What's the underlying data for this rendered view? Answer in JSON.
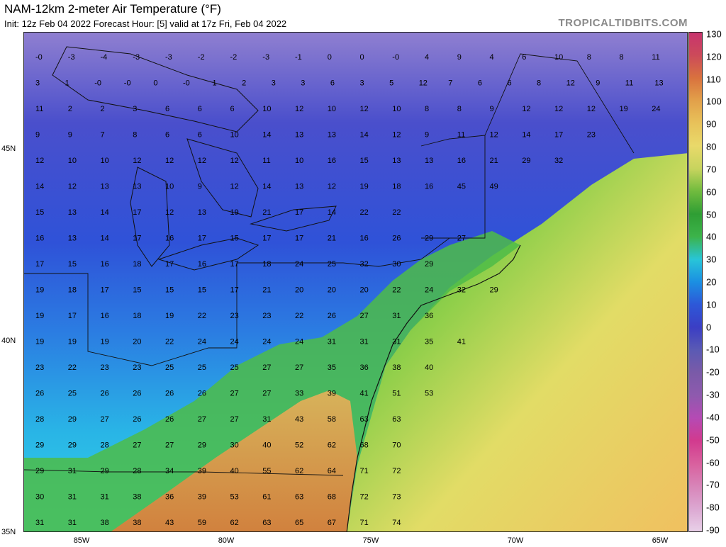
{
  "header": {
    "title": "NAM-12km 2-meter Air Temperature (°F)",
    "subtitle": "Init: 12z Feb 04 2022   Forecast Hour: [5]   valid at 17z Fri, Feb 04 2022",
    "brand": "TROPICALTIDBITS.COM"
  },
  "axes": {
    "x_labels": [
      "85W",
      "80W",
      "75W",
      "70W",
      "65W"
    ],
    "y_labels": [
      "45N",
      "40N",
      "35N"
    ]
  },
  "colorbar": {
    "labels": [
      "130",
      "120",
      "110",
      "100",
      "90",
      "80",
      "70",
      "60",
      "50",
      "40",
      "30",
      "20",
      "10",
      "0",
      "-10",
      "-20",
      "-30",
      "-40",
      "-50",
      "-60",
      "-70",
      "-80",
      "-90"
    ],
    "colors_top_to_bottom": [
      "#c8336e",
      "#cc4a5a",
      "#d9723e",
      "#e2a04a",
      "#e8c25a",
      "#e9d96a",
      "#c7d45e",
      "#70bb3e",
      "#2f9e34",
      "#3cb34a",
      "#28c5d8",
      "#1b8fe2",
      "#2d58d8",
      "#3b3ec4",
      "#5a5ab4",
      "#7a5aa8",
      "#8e5aae",
      "#b54ab4",
      "#d23a8e",
      "#d9609e",
      "#d884b8",
      "#dca8d2",
      "#e8d0e8"
    ]
  },
  "temperatures": [
    [
      "-0",
      "-3",
      "-4",
      "-3",
      "-3",
      "-2",
      "-2",
      "-3",
      "-1",
      "0",
      "0",
      "-0",
      "4",
      "9",
      "4",
      "6",
      "10",
      "8",
      "8",
      "11"
    ],
    [
      "3",
      "1",
      "-0",
      "-0",
      "0",
      "-0",
      "1",
      "2",
      "3",
      "3",
      "6",
      "3",
      "5",
      "12",
      "7",
      "6",
      "6",
      "8",
      "12",
      "9",
      "11",
      "13"
    ],
    [
      "11",
      "2",
      "2",
      "3",
      "6",
      "6",
      "6",
      "10",
      "12",
      "10",
      "12",
      "10",
      "8",
      "8",
      "9",
      "12",
      "12",
      "12",
      "19",
      "24"
    ],
    [
      "9",
      "9",
      "7",
      "8",
      "6",
      "6",
      "10",
      "14",
      "13",
      "13",
      "14",
      "12",
      "9",
      "11",
      "12",
      "14",
      "17",
      "23"
    ],
    [
      "12",
      "10",
      "10",
      "12",
      "12",
      "12",
      "12",
      "11",
      "10",
      "16",
      "15",
      "13",
      "13",
      "16",
      "21",
      "29",
      "32"
    ],
    [
      "14",
      "12",
      "13",
      "13",
      "10",
      "9",
      "12",
      "14",
      "13",
      "12",
      "19",
      "18",
      "16",
      "45",
      "49"
    ],
    [
      "15",
      "13",
      "14",
      "17",
      "12",
      "13",
      "19",
      "21",
      "17",
      "14",
      "22",
      "22"
    ],
    [
      "16",
      "13",
      "14",
      "17",
      "16",
      "17",
      "15",
      "17",
      "17",
      "21",
      "16",
      "26",
      "29",
      "27"
    ],
    [
      "17",
      "15",
      "16",
      "18",
      "17",
      "16",
      "17",
      "18",
      "24",
      "25",
      "32",
      "30",
      "29"
    ],
    [
      "19",
      "18",
      "17",
      "15",
      "15",
      "15",
      "17",
      "21",
      "20",
      "20",
      "20",
      "22",
      "24",
      "32",
      "29"
    ],
    [
      "19",
      "17",
      "16",
      "18",
      "19",
      "22",
      "23",
      "23",
      "22",
      "26",
      "27",
      "31",
      "36"
    ],
    [
      "19",
      "19",
      "19",
      "20",
      "22",
      "24",
      "24",
      "24",
      "24",
      "31",
      "31",
      "31",
      "35",
      "41"
    ],
    [
      "23",
      "22",
      "23",
      "23",
      "25",
      "25",
      "25",
      "27",
      "27",
      "35",
      "36",
      "38",
      "40"
    ],
    [
      "26",
      "25",
      "26",
      "26",
      "26",
      "26",
      "27",
      "27",
      "33",
      "39",
      "41",
      "51",
      "53"
    ],
    [
      "28",
      "29",
      "27",
      "26",
      "26",
      "27",
      "27",
      "31",
      "43",
      "58",
      "63",
      "63"
    ],
    [
      "29",
      "29",
      "28",
      "27",
      "27",
      "29",
      "30",
      "40",
      "52",
      "62",
      "68",
      "70"
    ],
    [
      "29",
      "31",
      "29",
      "28",
      "34",
      "39",
      "40",
      "55",
      "62",
      "64",
      "71",
      "72"
    ],
    [
      "30",
      "31",
      "31",
      "38",
      "36",
      "39",
      "53",
      "61",
      "63",
      "68",
      "72",
      "73"
    ],
    [
      "31",
      "31",
      "38",
      "38",
      "43",
      "59",
      "62",
      "63",
      "65",
      "67",
      "71",
      "74"
    ]
  ]
}
